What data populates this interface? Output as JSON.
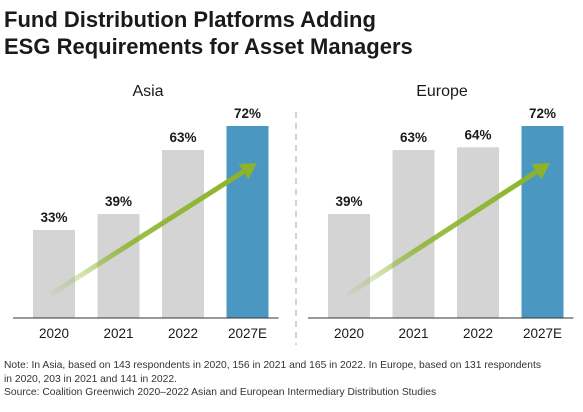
{
  "title": {
    "line1": "Fund Distribution Platforms Adding",
    "line2": "ESG Requirements for Asset Managers"
  },
  "colors": {
    "bar": "#d4d4d4",
    "bar_highlight": "#4a98c2",
    "arrow": "#8db32b",
    "divider": "#b5b5b5",
    "baseline": "#333333"
  },
  "chart_data": [
    {
      "type": "bar",
      "title": "Asia",
      "categories": [
        "2020",
        "2021",
        "2022",
        "2027E"
      ],
      "values": [
        33,
        39,
        63,
        72
      ],
      "value_labels": [
        "33%",
        "39%",
        "63%",
        "72%"
      ],
      "highlight": [
        "2027E"
      ],
      "ylim": [
        0,
        72
      ],
      "grid": false,
      "trend_arrow": true
    },
    {
      "type": "bar",
      "title": "Europe",
      "categories": [
        "2020",
        "2021",
        "2022",
        "2027E"
      ],
      "values": [
        39,
        63,
        64,
        72
      ],
      "value_labels": [
        "39%",
        "63%",
        "64%",
        "72%"
      ],
      "highlight": [
        "2027E"
      ],
      "ylim": [
        0,
        72
      ],
      "grid": false,
      "trend_arrow": true
    }
  ],
  "notes": {
    "line1": "Note: In Asia, based on 143 respondents in 2020, 156 in 2021 and 165 in 2022. In Europe, based on 131 respondents",
    "line2": "in 2020, 203 in 2021 and 141 in 2022.",
    "line3": "Source: Coalition Greenwich 2020–2022 Asian and European Intermediary Distribution Studies"
  }
}
